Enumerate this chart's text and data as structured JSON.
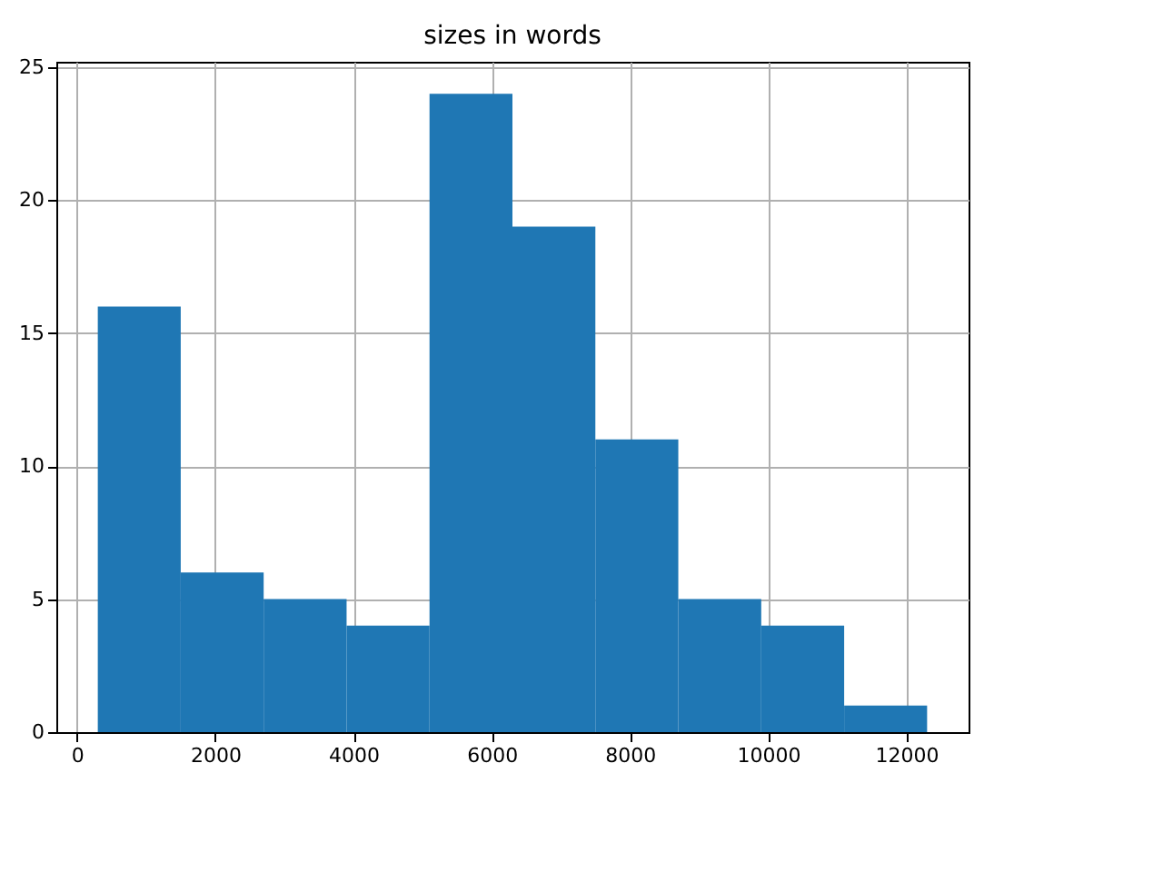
{
  "chart_data": {
    "type": "histogram",
    "title": "sizes in words",
    "bins": [
      300,
      1500,
      2700,
      3900,
      5100,
      6300,
      7500,
      8700,
      9900,
      11100,
      12300
    ],
    "values": [
      16,
      6,
      5,
      4,
      24,
      19,
      11,
      5,
      4,
      1
    ],
    "color": "#1f77b4",
    "xlim": [
      -300,
      12900
    ],
    "xticks": [
      0,
      2000,
      4000,
      6000,
      8000,
      10000,
      12000
    ],
    "ylim": [
      0,
      25.2
    ],
    "yticks": [
      0,
      5,
      10,
      15,
      20,
      25
    ],
    "grid": true
  }
}
